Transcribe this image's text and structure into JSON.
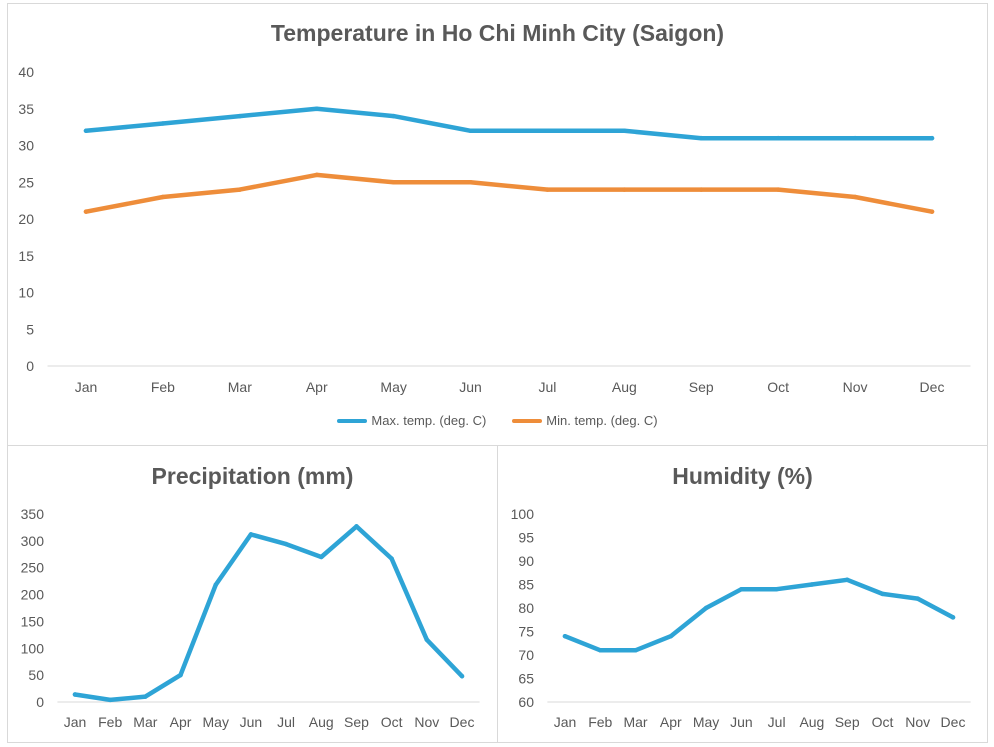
{
  "colors": {
    "max": "#2ea4d6",
    "min": "#ee8d3a",
    "axis": "#d9d9d9",
    "text": "#595959"
  },
  "chart_data": [
    {
      "id": "temp",
      "type": "line",
      "title": "Temperature in Ho Chi Minh City (Saigon)",
      "categories": [
        "Jan",
        "Feb",
        "Mar",
        "Apr",
        "May",
        "Jun",
        "Jul",
        "Aug",
        "Sep",
        "Oct",
        "Nov",
        "Dec"
      ],
      "ylim": [
        0,
        40
      ],
      "yticks": [
        0,
        5,
        10,
        15,
        20,
        25,
        30,
        35,
        40
      ],
      "legend_position": "bottom",
      "series": [
        {
          "name": "Max. temp. (deg. C)",
          "color": "#2ea4d6",
          "values": [
            32,
            33,
            34,
            35,
            34,
            32,
            32,
            32,
            31,
            31,
            31,
            31
          ]
        },
        {
          "name": "Min. temp. (deg. C)",
          "color": "#ee8d3a",
          "values": [
            21,
            23,
            24,
            26,
            25,
            25,
            24,
            24,
            24,
            24,
            23,
            21
          ]
        }
      ]
    },
    {
      "id": "precip",
      "type": "line",
      "title": "Precipitation (mm)",
      "categories": [
        "Jan",
        "Feb",
        "Mar",
        "Apr",
        "May",
        "Jun",
        "Jul",
        "Aug",
        "Sep",
        "Oct",
        "Nov",
        "Dec"
      ],
      "ylim": [
        0,
        350
      ],
      "yticks": [
        0,
        50,
        100,
        150,
        200,
        250,
        300,
        350
      ],
      "series": [
        {
          "name": "Precipitation",
          "color": "#2ea4d6",
          "values": [
            14,
            4,
            10,
            50,
            218,
            312,
            294,
            270,
            327,
            267,
            116,
            48
          ]
        }
      ]
    },
    {
      "id": "hum",
      "type": "line",
      "title": "Humidity (%)",
      "categories": [
        "Jan",
        "Feb",
        "Mar",
        "Apr",
        "May",
        "Jun",
        "Jul",
        "Aug",
        "Sep",
        "Oct",
        "Nov",
        "Dec"
      ],
      "ylim": [
        60,
        100
      ],
      "yticks": [
        60,
        65,
        70,
        75,
        80,
        85,
        90,
        95,
        100
      ],
      "series": [
        {
          "name": "Humidity",
          "color": "#2ea4d6",
          "values": [
            74,
            71,
            71,
            74,
            80,
            84,
            84,
            85,
            86,
            83,
            82,
            78
          ]
        }
      ]
    }
  ]
}
